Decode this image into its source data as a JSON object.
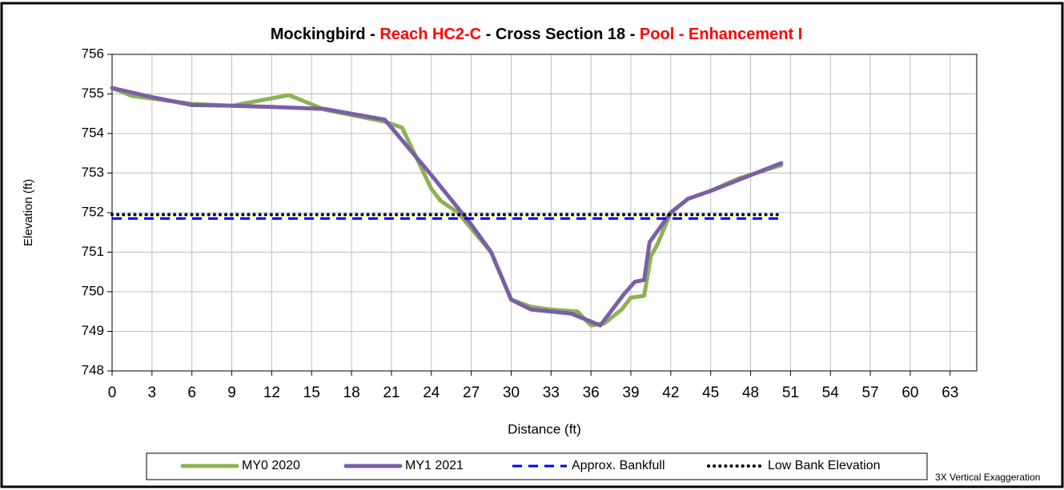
{
  "chart_data": {
    "type": "line",
    "title": [
      {
        "text": "Mockingbird - ",
        "color": "#000000"
      },
      {
        "text": "Reach HC2-C",
        "color": "#ff0000"
      },
      {
        "text": " - Cross Section 18 - ",
        "color": "#000000"
      },
      {
        "text": "Pool - Enhancement I",
        "color": "#ff0000"
      }
    ],
    "x_label": "Distance (ft)",
    "y_label": "Elevation (ft)",
    "annotation": "3X Vertical Exaggeration",
    "xlim": [
      0,
      65
    ],
    "xticks": [
      0,
      3,
      6,
      9,
      12,
      15,
      18,
      21,
      24,
      27,
      30,
      33,
      36,
      39,
      42,
      45,
      48,
      51,
      54,
      57,
      60,
      63
    ],
    "ylim": [
      748,
      756
    ],
    "yticks": [
      748,
      749,
      750,
      751,
      752,
      753,
      754,
      755,
      756
    ],
    "grid": true,
    "legend": "bottom",
    "series": [
      {
        "name": "MY0 2020",
        "color": "#8db255",
        "style": "solid",
        "x": [
          0,
          1.5,
          3,
          6,
          9,
          13.3,
          16,
          20.5,
          21.8,
          24,
          24.7,
          26,
          28.5,
          30,
          31.5,
          33,
          35,
          36,
          37,
          38.3,
          39,
          40,
          40.5,
          41,
          42,
          43.3,
          45,
          47,
          50.3
        ],
        "values": [
          755.15,
          754.95,
          754.88,
          754.75,
          754.7,
          754.97,
          754.6,
          754.3,
          754.15,
          752.6,
          752.3,
          752.0,
          751.0,
          749.8,
          749.62,
          749.55,
          749.5,
          749.15,
          749.2,
          749.55,
          749.85,
          749.9,
          750.9,
          751.2,
          752.0,
          752.35,
          752.55,
          752.85,
          753.2
        ]
      },
      {
        "name": "MY1 2021",
        "color": "#7b5ea7",
        "style": "solid",
        "x": [
          0,
          3,
          6,
          9,
          12,
          16,
          20.5,
          24,
          27,
          28.5,
          30,
          31.5,
          34.5,
          36.7,
          38.5,
          39.3,
          40,
          40.4,
          42,
          43.3,
          45,
          50.3
        ],
        "values": [
          755.15,
          754.92,
          754.72,
          754.7,
          754.67,
          754.62,
          754.35,
          752.95,
          751.7,
          751.0,
          749.8,
          749.55,
          749.45,
          749.15,
          749.95,
          750.25,
          750.3,
          751.25,
          752.0,
          752.35,
          752.55,
          753.25
        ]
      },
      {
        "name": "Approx. Bankfull",
        "color": "#0000ff",
        "style": "dashed",
        "x": [
          0,
          50.3
        ],
        "values": [
          751.85,
          751.85
        ]
      },
      {
        "name": "Low Bank Elevation",
        "color": "#000000",
        "style": "dotted",
        "x": [
          0,
          50.3
        ],
        "values": [
          751.95,
          751.95
        ]
      }
    ]
  }
}
